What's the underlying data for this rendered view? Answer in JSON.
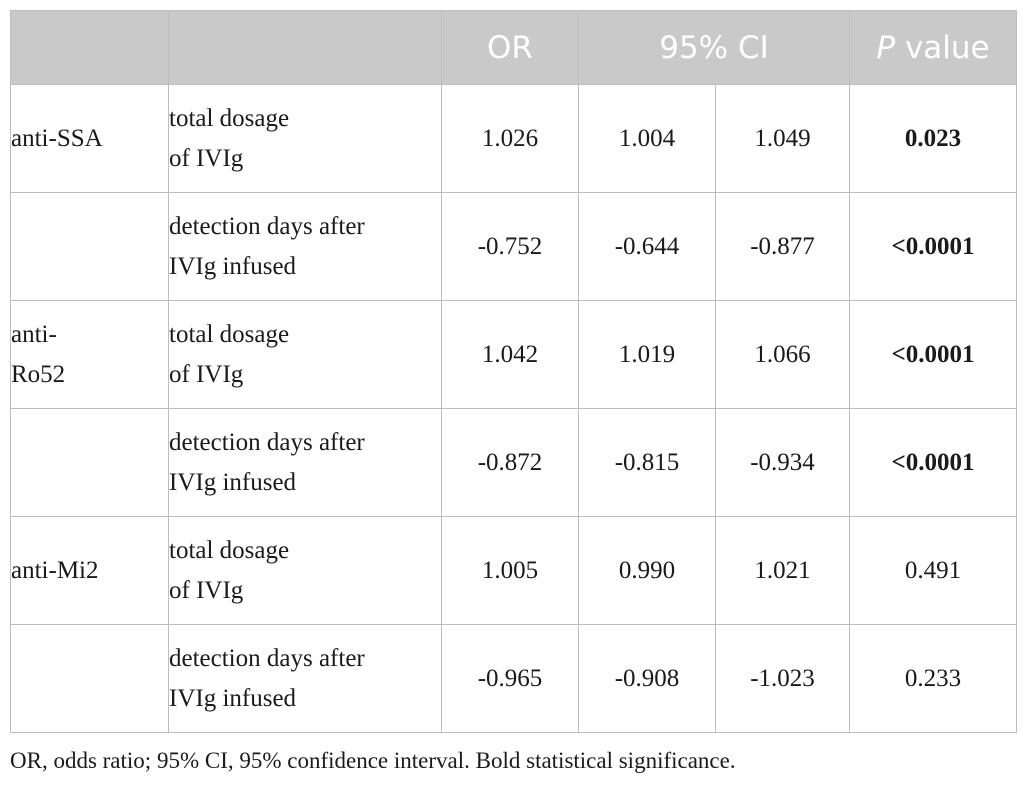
{
  "table": {
    "headers": {
      "blank1": "",
      "blank2": "",
      "or": "OR",
      "ci": "95% CI",
      "p_italic": "P",
      "p_rest": " value"
    },
    "rows": [
      {
        "antibody": [
          "anti-SSA"
        ],
        "variable": [
          "total dosage",
          "of IVIg"
        ],
        "or": "1.026",
        "ci_low": "1.004",
        "ci_high": "1.049",
        "p": "0.023",
        "p_bold": true
      },
      {
        "antibody": [],
        "variable": [
          "detection days after",
          "IVIg infused"
        ],
        "or": "-0.752",
        "ci_low": "-0.644",
        "ci_high": "-0.877",
        "p": "<0.0001",
        "p_bold": true
      },
      {
        "antibody": [
          "anti-",
          "Ro52"
        ],
        "variable": [
          "total dosage",
          "of IVIg"
        ],
        "or": "1.042",
        "ci_low": "1.019",
        "ci_high": "1.066",
        "p": "<0.0001",
        "p_bold": true
      },
      {
        "antibody": [],
        "variable": [
          "detection days after",
          "IVIg infused"
        ],
        "or": "-0.872",
        "ci_low": "-0.815",
        "ci_high": "-0.934",
        "p": "<0.0001",
        "p_bold": true
      },
      {
        "antibody": [
          "anti-Mi2"
        ],
        "variable": [
          "total dosage",
          "of IVIg"
        ],
        "or": "1.005",
        "ci_low": "0.990",
        "ci_high": "1.021",
        "p": "0.491",
        "p_bold": false
      },
      {
        "antibody": [],
        "variable": [
          "detection days after",
          "IVIg infused"
        ],
        "or": "-0.965",
        "ci_low": "-0.908",
        "ci_high": "-1.023",
        "p": "0.233",
        "p_bold": false
      }
    ]
  },
  "footnote": "OR, odds ratio; 95% CI, 95% confidence interval. Bold statistical significance.",
  "colors": {
    "header_background": "#c9c9c9",
    "header_text": "#ffffff",
    "border": "#bdbdbd",
    "body_text": "#1a1a1a"
  }
}
